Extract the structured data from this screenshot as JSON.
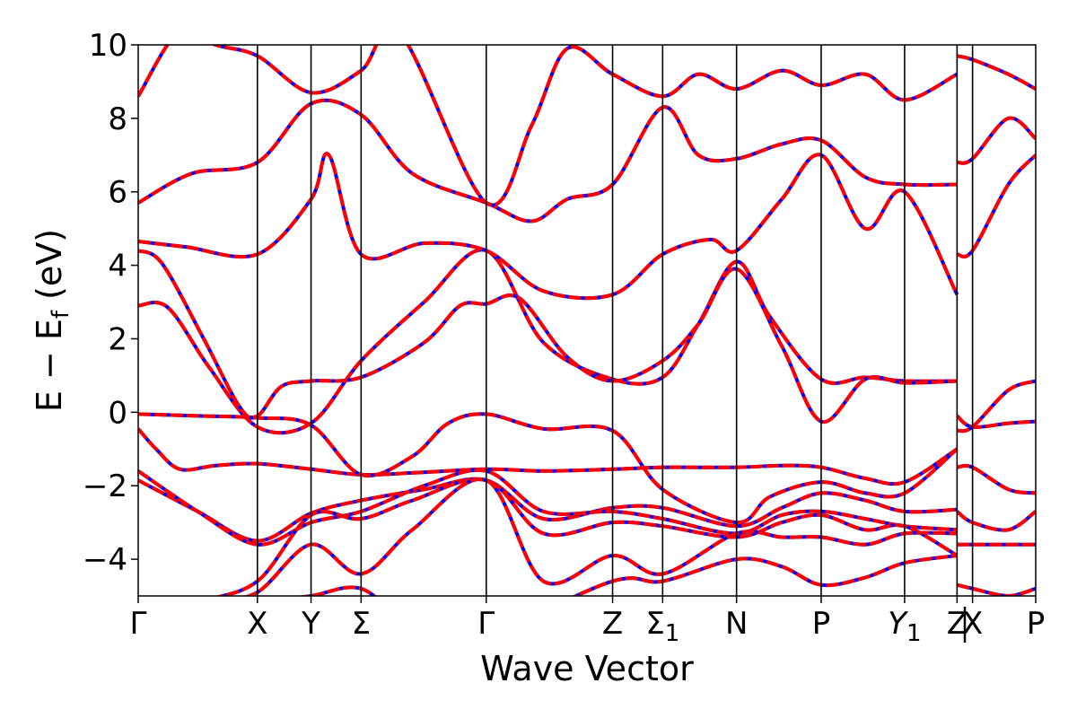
{
  "chart_data": {
    "type": "line",
    "title": "",
    "xlabel": "Wave Vector",
    "ylabel": "E − E_f (eV)",
    "ylabel_parts": {
      "main": "E − E",
      "sub": "f",
      "tail": " (eV)"
    },
    "ylim": [
      -5,
      10
    ],
    "yticks": [
      -4,
      -2,
      0,
      2,
      4,
      6,
      8,
      10
    ],
    "ytick_labels": [
      "−4",
      "−2",
      "0",
      "2",
      "4",
      "6",
      "8",
      "10"
    ],
    "kpoints": [
      {
        "label": "Γ",
        "x": 0.0
      },
      {
        "label": "X",
        "x": 1.0
      },
      {
        "label": "Y",
        "x": 1.45
      },
      {
        "label": "Σ",
        "x": 1.87
      },
      {
        "label": "Γ",
        "x": 2.92
      },
      {
        "label": "Z",
        "x": 3.98
      },
      {
        "label": "Σ",
        "sub": "1",
        "x": 4.4
      },
      {
        "label": "N",
        "x": 5.02
      },
      {
        "label": "P",
        "x": 5.73
      },
      {
        "label": "Y",
        "sub": "1",
        "italic": true,
        "x": 6.43
      },
      {
        "label": "Z",
        "x": 6.87
      },
      {
        "label": "X",
        "x": 7.0
      },
      {
        "label": "P",
        "x": 7.53
      }
    ],
    "series_styles": [
      {
        "color": "#0000ff",
        "style": "solid"
      },
      {
        "color": "#ff0000",
        "style": "dashed"
      }
    ],
    "bands": [
      [
        [
          0,
          -0.45
        ],
        [
          0.15,
          -1.0
        ],
        [
          0.35,
          -1.55
        ],
        [
          0.65,
          -1.45
        ],
        [
          1.0,
          -1.4
        ],
        [
          1.45,
          -1.55
        ],
        [
          1.87,
          -1.7
        ],
        [
          2.3,
          -1.65
        ],
        [
          2.92,
          -1.55
        ],
        [
          3.4,
          -1.6
        ],
        [
          3.98,
          -1.55
        ],
        [
          4.4,
          -1.5
        ],
        [
          5.02,
          -1.5
        ],
        [
          5.4,
          -1.45
        ],
        [
          5.73,
          -1.5
        ],
        [
          6.1,
          -1.8
        ],
        [
          6.43,
          -1.9
        ],
        [
          6.87,
          -1.0
        ]
      ],
      [
        [
          0,
          -0.05
        ],
        [
          0.5,
          -0.1
        ],
        [
          1.0,
          -0.15
        ],
        [
          1.45,
          -0.35
        ],
        [
          1.87,
          -1.7
        ],
        [
          2.3,
          -1.2
        ],
        [
          2.6,
          -0.3
        ],
        [
          2.92,
          -0.05
        ],
        [
          3.4,
          -0.45
        ],
        [
          3.98,
          -0.5
        ],
        [
          4.4,
          -2.1
        ],
        [
          5.02,
          -3.0
        ],
        [
          5.3,
          -2.3
        ],
        [
          5.73,
          -1.9
        ],
        [
          6.1,
          -2.2
        ],
        [
          6.43,
          -2.2
        ],
        [
          6.87,
          -1.0
        ]
      ],
      [
        [
          0,
          2.9
        ],
        [
          0.25,
          2.85
        ],
        [
          0.6,
          1.2
        ],
        [
          1.0,
          -0.4
        ],
        [
          1.45,
          -0.3
        ],
        [
          1.87,
          1.4
        ],
        [
          2.4,
          3.0
        ],
        [
          2.92,
          4.4
        ],
        [
          3.4,
          1.9
        ],
        [
          3.98,
          0.9
        ],
        [
          4.4,
          0.95
        ],
        [
          4.7,
          2.4
        ],
        [
          5.02,
          4.1
        ],
        [
          5.3,
          2.6
        ],
        [
          5.73,
          0.9
        ],
        [
          6.1,
          0.95
        ],
        [
          6.43,
          0.85
        ],
        [
          6.87,
          0.85
        ]
      ],
      [
        [
          0,
          4.4
        ],
        [
          0.2,
          4.05
        ],
        [
          0.55,
          2.0
        ],
        [
          0.85,
          0.15
        ],
        [
          1.0,
          -0.1
        ],
        [
          1.2,
          0.7
        ],
        [
          1.45,
          0.85
        ],
        [
          1.87,
          0.95
        ],
        [
          2.4,
          1.9
        ],
        [
          2.7,
          2.9
        ],
        [
          2.92,
          2.95
        ],
        [
          3.2,
          3.1
        ],
        [
          3.6,
          1.5
        ],
        [
          3.98,
          0.85
        ],
        [
          4.4,
          1.4
        ],
        [
          4.7,
          2.4
        ],
        [
          5.02,
          3.9
        ],
        [
          5.4,
          1.8
        ],
        [
          5.73,
          -0.25
        ],
        [
          6.1,
          0.9
        ],
        [
          6.43,
          0.8
        ],
        [
          6.87,
          0.85
        ]
      ],
      [
        [
          0,
          4.65
        ],
        [
          0.4,
          4.5
        ],
        [
          1.0,
          4.3
        ],
        [
          1.45,
          5.8
        ],
        [
          1.6,
          7.0
        ],
        [
          1.87,
          4.3
        ],
        [
          2.4,
          4.6
        ],
        [
          2.92,
          4.4
        ],
        [
          3.4,
          3.3
        ],
        [
          3.98,
          3.2
        ],
        [
          4.4,
          4.3
        ],
        [
          4.8,
          4.7
        ],
        [
          5.02,
          4.4
        ],
        [
          5.4,
          5.8
        ],
        [
          5.73,
          7.0
        ],
        [
          6.1,
          5.0
        ],
        [
          6.43,
          6.0
        ],
        [
          6.87,
          3.2
        ]
      ],
      [
        [
          0,
          5.7
        ],
        [
          0.45,
          6.5
        ],
        [
          1.0,
          6.8
        ],
        [
          1.45,
          8.4
        ],
        [
          1.87,
          8.1
        ],
        [
          2.3,
          6.5
        ],
        [
          2.92,
          5.7
        ],
        [
          3.3,
          5.2
        ],
        [
          3.6,
          5.8
        ],
        [
          3.98,
          6.2
        ],
        [
          4.4,
          8.3
        ],
        [
          4.7,
          7.0
        ],
        [
          5.02,
          6.9
        ],
        [
          5.4,
          7.3
        ],
        [
          5.73,
          7.4
        ],
        [
          6.1,
          6.4
        ],
        [
          6.43,
          6.2
        ],
        [
          6.87,
          6.2
        ]
      ],
      [
        [
          0,
          8.6
        ],
        [
          0.35,
          10.4
        ],
        [
          0.65,
          10.0
        ],
        [
          1.0,
          9.7
        ],
        [
          1.45,
          8.7
        ],
        [
          1.87,
          9.3
        ],
        [
          2.2,
          10.3
        ],
        [
          2.92,
          5.7
        ],
        [
          3.3,
          7.8
        ],
        [
          3.6,
          9.9
        ],
        [
          3.98,
          9.2
        ],
        [
          4.4,
          8.6
        ],
        [
          4.7,
          9.2
        ],
        [
          5.02,
          8.8
        ],
        [
          5.4,
          9.3
        ],
        [
          5.73,
          8.9
        ],
        [
          6.1,
          9.2
        ],
        [
          6.43,
          8.5
        ],
        [
          6.87,
          9.2
        ]
      ],
      [
        [
          0,
          -1.85
        ],
        [
          0.5,
          -2.7
        ],
        [
          1.0,
          -3.5
        ],
        [
          1.45,
          -2.75
        ],
        [
          1.87,
          -2.4
        ],
        [
          2.4,
          -2.1
        ],
        [
          2.92,
          -1.85
        ],
        [
          3.4,
          -2.9
        ],
        [
          3.98,
          -2.6
        ],
        [
          4.4,
          -2.6
        ],
        [
          5.02,
          -3.1
        ],
        [
          5.4,
          -2.6
        ],
        [
          5.73,
          -2.2
        ],
        [
          6.1,
          -2.4
        ],
        [
          6.43,
          -2.7
        ],
        [
          6.87,
          -2.65
        ]
      ],
      [
        [
          0,
          -1.6
        ],
        [
          0.5,
          -2.7
        ],
        [
          1.0,
          -3.6
        ],
        [
          1.45,
          -3.0
        ],
        [
          1.87,
          -2.7
        ],
        [
          2.4,
          -2.0
        ],
        [
          2.92,
          -1.6
        ],
        [
          3.4,
          -2.7
        ],
        [
          3.98,
          -2.7
        ],
        [
          4.4,
          -2.9
        ],
        [
          5.02,
          -3.3
        ],
        [
          5.4,
          -2.8
        ],
        [
          5.73,
          -2.7
        ],
        [
          6.1,
          -2.9
        ],
        [
          6.43,
          -3.1
        ],
        [
          6.87,
          -3.2
        ]
      ],
      [
        [
          0,
          -6.0
        ],
        [
          0.5,
          -5.2
        ],
        [
          1.0,
          -4.6
        ],
        [
          1.45,
          -2.8
        ],
        [
          1.87,
          -2.9
        ],
        [
          2.3,
          -2.4
        ],
        [
          2.92,
          -1.85
        ],
        [
          3.4,
          -3.3
        ],
        [
          3.98,
          -3.0
        ],
        [
          4.4,
          -3.1
        ],
        [
          5.02,
          -3.4
        ],
        [
          5.4,
          -3.0
        ],
        [
          5.73,
          -2.8
        ],
        [
          6.1,
          -3.2
        ],
        [
          6.43,
          -3.1
        ],
        [
          6.87,
          -3.9
        ]
      ],
      [
        [
          0,
          -6.0
        ],
        [
          0.6,
          -5.2
        ],
        [
          1.0,
          -4.9
        ],
        [
          1.45,
          -3.6
        ],
        [
          1.87,
          -4.4
        ],
        [
          2.3,
          -3.2
        ],
        [
          2.92,
          -1.85
        ],
        [
          3.4,
          -4.6
        ],
        [
          3.98,
          -3.9
        ],
        [
          4.4,
          -4.4
        ],
        [
          5.02,
          -3.3
        ],
        [
          5.4,
          -3.4
        ],
        [
          5.73,
          -3.4
        ],
        [
          6.1,
          -3.6
        ],
        [
          6.43,
          -3.3
        ],
        [
          6.87,
          -3.3
        ]
      ],
      [
        [
          0,
          -6.0
        ],
        [
          0.7,
          -5.5
        ],
        [
          1.0,
          -5.2
        ],
        [
          1.45,
          -5.0
        ],
        [
          1.87,
          -4.8
        ],
        [
          2.3,
          -5.8
        ],
        [
          2.92,
          -6.0
        ],
        [
          3.98,
          -4.6
        ],
        [
          4.4,
          -4.6
        ],
        [
          5.02,
          -4.0
        ],
        [
          5.4,
          -4.2
        ],
        [
          5.73,
          -4.7
        ],
        [
          6.1,
          -4.5
        ],
        [
          6.43,
          -4.1
        ],
        [
          6.87,
          -3.9
        ]
      ],
      [
        [
          6.87,
          -0.1
        ],
        [
          7.0,
          -0.4
        ],
        [
          7.3,
          -0.3
        ],
        [
          7.53,
          -0.25
        ]
      ],
      [
        [
          6.87,
          -0.5
        ],
        [
          7.0,
          -0.4
        ],
        [
          7.3,
          0.6
        ],
        [
          7.53,
          0.85
        ]
      ],
      [
        [
          6.87,
          4.3
        ],
        [
          7.0,
          4.4
        ],
        [
          7.3,
          6.2
        ],
        [
          7.53,
          7.0
        ]
      ],
      [
        [
          6.87,
          6.8
        ],
        [
          7.0,
          6.9
        ],
        [
          7.3,
          8.0
        ],
        [
          7.53,
          7.45
        ]
      ],
      [
        [
          6.87,
          9.7
        ],
        [
          7.0,
          9.6
        ],
        [
          7.3,
          9.2
        ],
        [
          7.53,
          8.8
        ]
      ],
      [
        [
          6.87,
          -1.5
        ],
        [
          7.0,
          -1.5
        ],
        [
          7.3,
          -2.1
        ],
        [
          7.53,
          -2.2
        ]
      ],
      [
        [
          6.87,
          -2.7
        ],
        [
          7.0,
          -3.0
        ],
        [
          7.3,
          -3.2
        ],
        [
          7.53,
          -2.7
        ]
      ],
      [
        [
          6.87,
          -3.6
        ],
        [
          7.0,
          -3.6
        ],
        [
          7.3,
          -3.6
        ],
        [
          7.53,
          -3.6
        ]
      ],
      [
        [
          6.87,
          -4.7
        ],
        [
          7.0,
          -4.8
        ],
        [
          7.3,
          -5.0
        ],
        [
          7.53,
          -4.8
        ]
      ]
    ]
  }
}
